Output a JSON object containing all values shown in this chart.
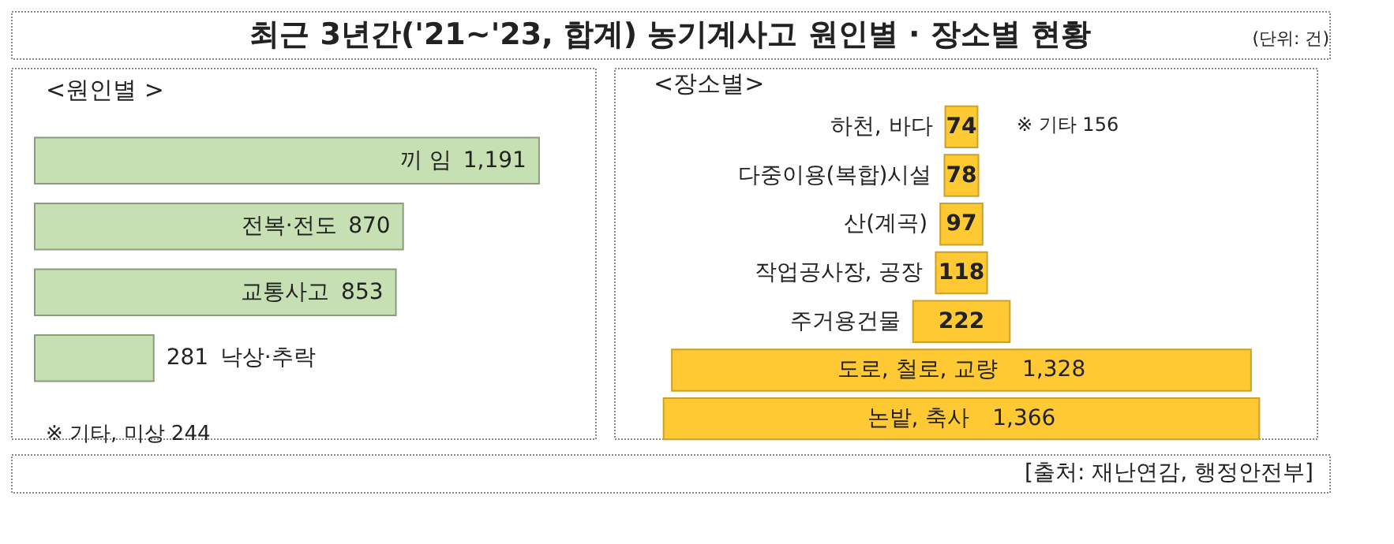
{
  "chart_data": [
    {
      "type": "bar",
      "orientation": "horizontal",
      "title": "최근 3년간('21~'23, 합계) 농기계사고 원인별 · 장소별 현황",
      "subtitle": "<원인별 >",
      "categories": [
        "끼 임",
        "전복·전도",
        "교통사고",
        "낙상·추락"
      ],
      "values": [
        1191,
        870,
        853,
        281
      ],
      "value_labels": [
        "1,191",
        "870",
        "853",
        "281"
      ],
      "color": "#c6e0b4",
      "annotations": [
        "※ 기타, 미상 244"
      ]
    },
    {
      "type": "other",
      "subtitle": "<장소별>",
      "categories": [
        "하천, 바다",
        "다중이용(복합)시설",
        "산(계곡)",
        "작업공사장, 공장",
        "주거용건물",
        "도로, 철로, 교량",
        "논밭, 축사"
      ],
      "values": [
        74,
        78,
        97,
        118,
        222,
        1328,
        1366
      ],
      "value_labels": [
        "74",
        "78",
        "97",
        "118",
        "222",
        "1,328",
        "1,366"
      ],
      "color": "#ffc934",
      "annotations": [
        "(단위: 건)",
        "※ 기타 156",
        "[출처: 재난연감, 행정안전부]"
      ]
    }
  ]
}
